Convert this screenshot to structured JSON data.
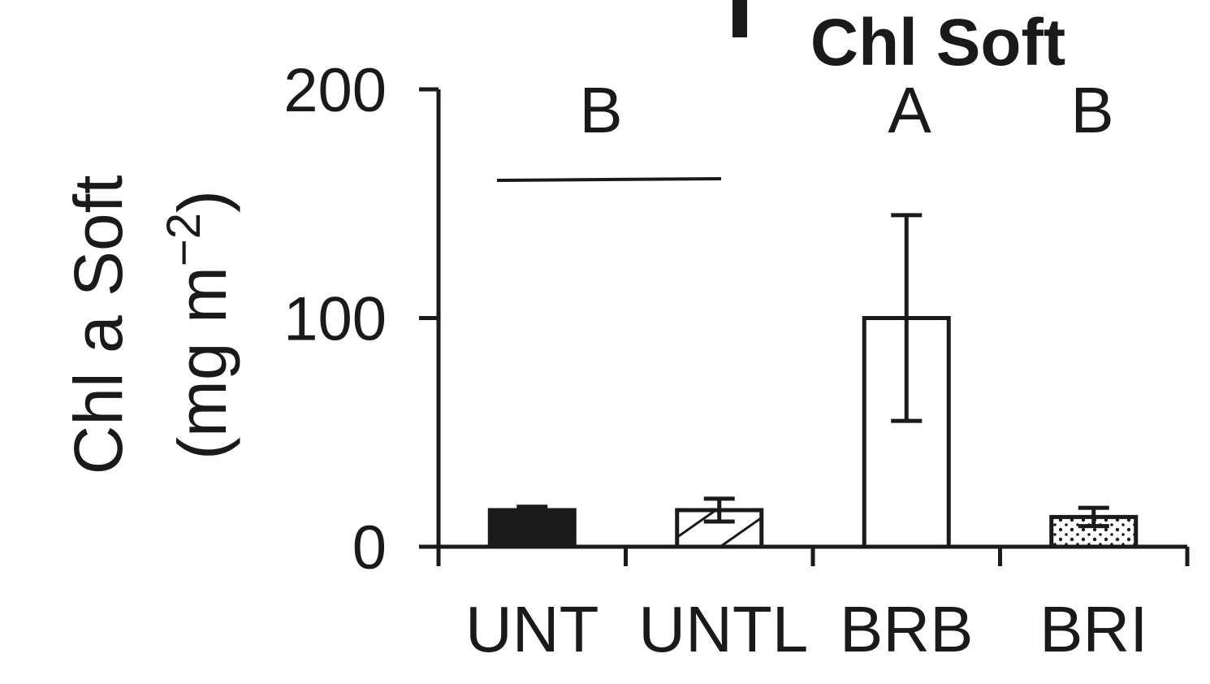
{
  "chart_data": {
    "type": "bar",
    "title": "Chl Soft",
    "ylabel_line1": "Chl a Soft",
    "ylabel_line2_prefix": "(mg m",
    "ylabel_line2_sup": "−2",
    "ylabel_line2_suffix": ")",
    "ylim": [
      0,
      200
    ],
    "yticks": [
      "0",
      "100",
      "200"
    ],
    "categories": [
      "UNT",
      "UNTL",
      "BRB",
      "BRI"
    ],
    "values": [
      16,
      16,
      100,
      13
    ],
    "errors": [
      1.5,
      5,
      45,
      4
    ],
    "fills": [
      "solid",
      "hatched",
      "open",
      "dotted"
    ],
    "significance": [
      "B",
      "A",
      "B"
    ],
    "colors": {
      "ink": "#1a1a1a",
      "background": "#ffffff"
    }
  }
}
